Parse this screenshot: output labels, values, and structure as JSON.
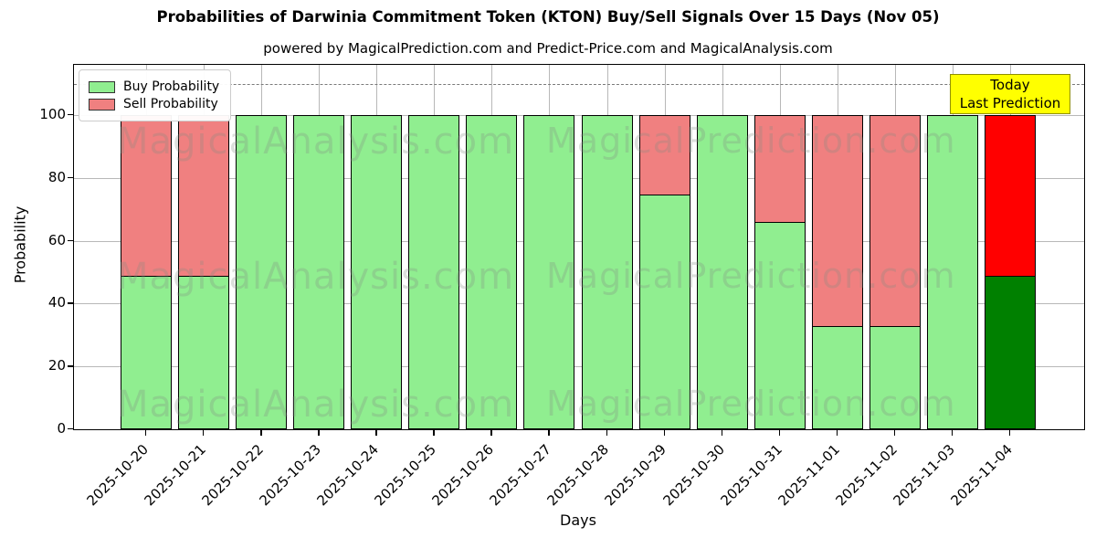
{
  "title": "Probabilities of Darwinia Commitment Token (KTON) Buy/Sell Signals Over 15 Days (Nov 05)",
  "subtitle": "powered by MagicalPrediction.com and Predict-Price.com and MagicalAnalysis.com",
  "legend": {
    "items": [
      {
        "label": "Buy Probability",
        "color": "#90EE90"
      },
      {
        "label": "Sell Probability",
        "color": "#F08080"
      }
    ]
  },
  "annotation": {
    "line1": "Today",
    "line2": "Last Prediction",
    "bg": "#FFFF00"
  },
  "watermarks": {
    "left": "MagicalAnalysis.com",
    "right": "MagicalPrediction.com"
  },
  "chart_data": {
    "type": "bar",
    "stacked": true,
    "title": "Probabilities of Darwinia Commitment Token (KTON) Buy/Sell Signals Over 15 Days (Nov 05)",
    "xlabel": "Days",
    "ylabel": "Probability",
    "ylim": [
      0,
      116
    ],
    "yticks": [
      0,
      20,
      40,
      60,
      80,
      100
    ],
    "grid": true,
    "dashed_line_y": 110,
    "legend_position": "upper left",
    "categories": [
      "2025-10-20",
      "2025-10-21",
      "2025-10-22",
      "2025-10-23",
      "2025-10-24",
      "2025-10-25",
      "2025-10-26",
      "2025-10-27",
      "2025-10-28",
      "2025-10-29",
      "2025-10-30",
      "2025-10-31",
      "2025-11-01",
      "2025-11-02",
      "2025-11-03",
      "2025-11-04"
    ],
    "series": [
      {
        "name": "Buy Probability",
        "color": "#90EE90",
        "values": [
          49,
          49,
          100,
          100,
          100,
          100,
          100,
          100,
          100,
          75,
          100,
          66,
          33,
          33,
          100,
          49
        ]
      },
      {
        "name": "Sell Probability",
        "color": "#F08080",
        "values": [
          51,
          51,
          0,
          0,
          0,
          0,
          0,
          0,
          0,
          25,
          0,
          34,
          67,
          67,
          0,
          51
        ]
      }
    ],
    "today_bar": {
      "index": 15,
      "buy_color": "#008000",
      "sell_color": "#FF0000"
    }
  }
}
